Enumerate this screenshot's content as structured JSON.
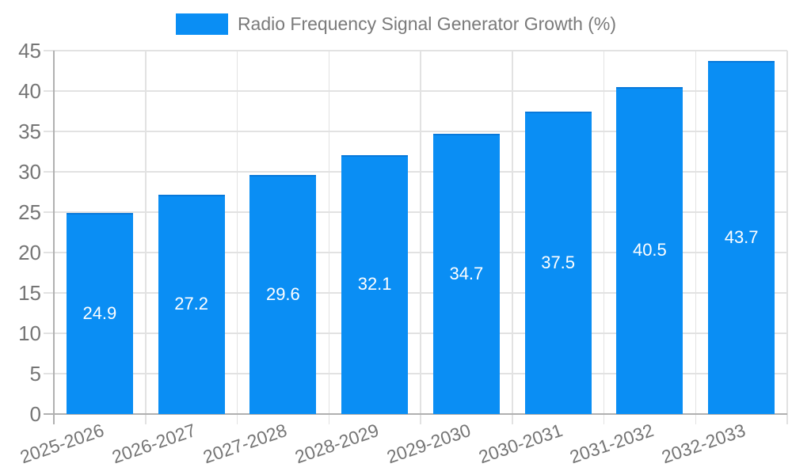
{
  "legend": {
    "label": "Radio Frequency Signal Generator Growth (%)"
  },
  "chart_data": {
    "type": "bar",
    "title": "Radio Frequency Signal Generator Growth (%)",
    "categories": [
      "2025-2026",
      "2026-2027",
      "2027-2028",
      "2028-2029",
      "2029-2030",
      "2030-2031",
      "2031-2032",
      "2032-2033"
    ],
    "values": [
      24.9,
      27.2,
      29.6,
      32.1,
      34.7,
      37.5,
      40.5,
      43.7
    ],
    "value_labels": [
      "24.9",
      "27.2",
      "29.6",
      "32.1",
      "34.7",
      "37.5",
      "40.5",
      "43.7"
    ],
    "xlabel": "",
    "ylabel": "",
    "ylim": [
      0,
      45
    ],
    "yticks": [
      0,
      5,
      10,
      15,
      20,
      25,
      30,
      35,
      40,
      45
    ],
    "grid": true,
    "legend_position": "top",
    "colors": {
      "bar_fill": "#0A8EF4",
      "bar_border": "#0879DB",
      "value_label": "#FFFFFF",
      "axis_text": "#757575",
      "legend_text": "#7A7A7A",
      "gridline": "#E2E2E2",
      "axis_line": "#B0B0B0"
    }
  }
}
